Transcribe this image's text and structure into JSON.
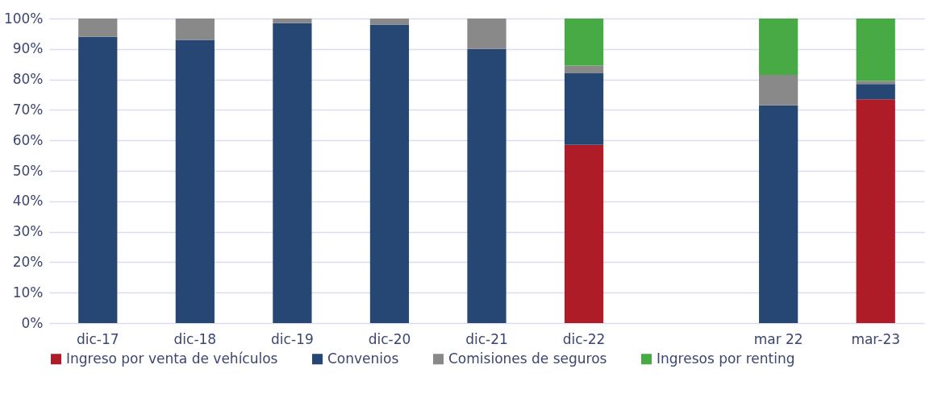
{
  "chart_data": {
    "type": "bar",
    "stacked": true,
    "categories": [
      "dic-17",
      "dic-18",
      "dic-19",
      "dic-20",
      "dic-21",
      "dic-22",
      null,
      "mar 22",
      "mar-23"
    ],
    "series": [
      {
        "name": "Ingreso por venta de vehículos",
        "color": "#ae1c27",
        "values": [
          null,
          null,
          null,
          null,
          null,
          58.5,
          null,
          null,
          73.5
        ]
      },
      {
        "name": "Convenios",
        "color": "#264674",
        "values": [
          94,
          93,
          98.5,
          98,
          90,
          23.5,
          null,
          71.5,
          5
        ]
      },
      {
        "name": "Comisiones de seguros",
        "color": "#898989",
        "values": [
          6,
          7,
          1.5,
          2,
          10,
          2.5,
          null,
          10,
          1
        ]
      },
      {
        "name": "Ingresos por renting",
        "color": "#47aa45",
        "values": [
          null,
          null,
          null,
          null,
          null,
          15.5,
          null,
          18.5,
          20.5
        ]
      }
    ],
    "ylim": [
      0,
      100
    ],
    "yticks": [
      {
        "value": 0,
        "label": "0%"
      },
      {
        "value": 10,
        "label": "10%"
      },
      {
        "value": 20,
        "label": "20%"
      },
      {
        "value": 30,
        "label": "30%"
      },
      {
        "value": 40,
        "label": "40%"
      },
      {
        "value": 50,
        "label": "50%"
      },
      {
        "value": 60,
        "label": "60%"
      },
      {
        "value": 70,
        "label": "70%"
      },
      {
        "value": 80,
        "label": "80%"
      },
      {
        "value": 90,
        "label": "90%"
      },
      {
        "value": 100,
        "label": "100%"
      }
    ],
    "grid": "y",
    "legend": "bottom"
  }
}
